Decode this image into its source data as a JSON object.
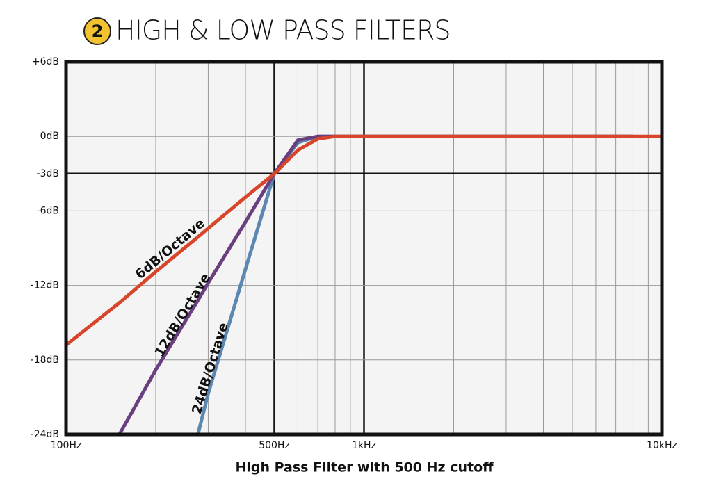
{
  "chart_data": {
    "type": "line",
    "badge": "2",
    "title": "HIGH & LOW PASS FILTERS",
    "x_label": "High Pass Filter with 500 Hz cutoff",
    "x": [
      100,
      151,
      200,
      277,
      300,
      400,
      500,
      600,
      700,
      800,
      8000,
      10000
    ],
    "series": [
      {
        "name": "6dB/Octave",
        "color": "#d8452b",
        "values": [
          -16.8,
          -13.4,
          -10.9,
          -8.1,
          -7.4,
          -4.9,
          -3,
          -1.1,
          -0.2,
          0,
          0,
          0
        ]
      },
      {
        "name": "12dB/Octave",
        "color": "#6a3f80",
        "values": [
          null,
          -24,
          -18.8,
          -13.2,
          -11.8,
          -6.9,
          -3,
          -0.3,
          0,
          0,
          0,
          null
        ]
      },
      {
        "name": "24dB/Octave",
        "color": "#5b87b0",
        "values": [
          null,
          null,
          null,
          -24,
          -20.7,
          -10.7,
          -3,
          -0.5,
          0,
          0,
          0,
          null
        ]
      }
    ],
    "xscale": "log",
    "xlim": [
      100,
      10000
    ],
    "xticks": [
      {
        "value": 100,
        "label": "100Hz"
      },
      {
        "value": 500,
        "label": "500Hz"
      },
      {
        "value": 1000,
        "label": "1kHz"
      },
      {
        "value": 10000,
        "label": "10kHz"
      }
    ],
    "xminor": [
      200,
      300,
      400,
      600,
      700,
      800,
      900,
      2000,
      3000,
      4000,
      5000,
      6000,
      7000,
      8000,
      9000
    ],
    "ylim": [
      -24,
      6
    ],
    "yticks": [
      {
        "value": 6,
        "label": "+6dB"
      },
      {
        "value": 0,
        "label": "0dB"
      },
      {
        "value": -3,
        "label": "-3dB"
      },
      {
        "value": -6,
        "label": "-6dB"
      },
      {
        "value": -12,
        "label": "-12dB"
      },
      {
        "value": -18,
        "label": "-18dB"
      },
      {
        "value": -24,
        "label": "-24dB"
      }
    ],
    "yemphasis": [
      -3
    ],
    "grid": true
  }
}
